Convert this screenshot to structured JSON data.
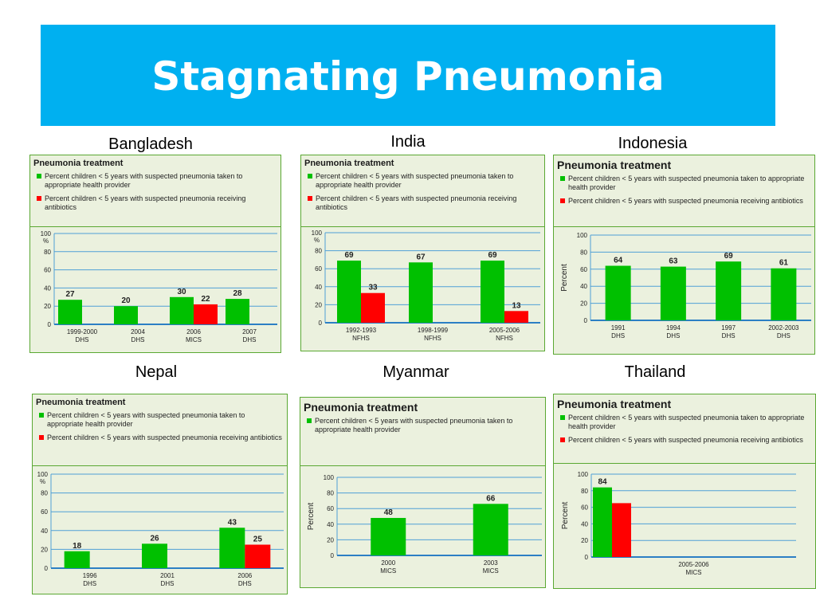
{
  "title": "Stagnating Pneumonia",
  "colors": {
    "banner": "#00b0f0",
    "provider": "#00c000",
    "antibiotics": "#ff0000",
    "panel_bg": "#ebf1de",
    "border": "#5aa832",
    "grid": "#4f9fd6"
  },
  "legend_labels": {
    "provider": "Percent children < 5 years with suspected pneumonia taken to appropriate health provider",
    "antibiotics": "Percent children < 5 years with suspected pneumonia receiving antibiotics"
  },
  "chart_data": [
    {
      "country": "Bangladesh",
      "type": "bar",
      "title": "Pneumonia treatment",
      "ylabel": "",
      "yunit": "%",
      "ylim": [
        0,
        100
      ],
      "yticks": [
        0,
        20,
        40,
        60,
        80,
        100
      ],
      "categories": [
        "1999-2000|DHS",
        "2004|DHS",
        "2006|MICS",
        "2007|DHS"
      ],
      "series": [
        {
          "name": "Percent children < 5 years with suspected pneumonia taken to appropriate health provider",
          "key": "provider",
          "values": [
            27,
            20,
            30,
            28
          ]
        },
        {
          "name": "Percent children < 5 years with suspected pneumonia receiving antibiotics",
          "key": "antibiotics",
          "values": [
            null,
            null,
            22,
            null
          ]
        }
      ]
    },
    {
      "country": "India",
      "type": "bar",
      "title": "Pneumonia treatment",
      "ylabel": "",
      "yunit": "%",
      "ylim": [
        0,
        100
      ],
      "yticks": [
        0,
        20,
        40,
        60,
        80,
        100
      ],
      "categories": [
        "1992-1993|NFHS",
        "1998-1999|NFHS",
        "2005-2006|NFHS"
      ],
      "series": [
        {
          "name": "Percent children < 5 years with suspected pneumonia taken to appropriate health provider",
          "key": "provider",
          "values": [
            69,
            67,
            69
          ]
        },
        {
          "name": "Percent children < 5 years with suspected pneumonia receiving antibiotics",
          "key": "antibiotics",
          "values": [
            33,
            null,
            13
          ]
        }
      ]
    },
    {
      "country": "Indonesia",
      "type": "bar",
      "title": "Pneumonia treatment",
      "ylabel": "Percent",
      "yunit": "",
      "ylim": [
        0,
        100
      ],
      "yticks": [
        0,
        20,
        40,
        60,
        80,
        100
      ],
      "categories": [
        "1991|DHS",
        "1994|DHS",
        "1997|DHS",
        "2002-2003|DHS"
      ],
      "series": [
        {
          "name": "Percent children < 5 years with suspected pneumonia taken to appropriate health provider",
          "key": "provider",
          "values": [
            64,
            63,
            69,
            61
          ]
        },
        {
          "name": "Percent children < 5 years with suspected pneumonia receiving antibiotics",
          "key": "antibiotics",
          "values": [
            null,
            null,
            null,
            null
          ]
        }
      ]
    },
    {
      "country": "Nepal",
      "type": "bar",
      "title": "Pneumonia treatment",
      "ylabel": "",
      "yunit": "%",
      "ylim": [
        0,
        100
      ],
      "yticks": [
        0,
        20,
        40,
        60,
        80,
        100
      ],
      "categories": [
        "1996|DHS",
        "2001|DHS",
        "2006|DHS"
      ],
      "series": [
        {
          "name": "Percent children < 5 years with suspected pneumonia taken to appropriate health provider",
          "key": "provider",
          "values": [
            18,
            26,
            43
          ]
        },
        {
          "name": "Percent children < 5 years with suspected pneumonia receiving antibiotics",
          "key": "antibiotics",
          "values": [
            null,
            null,
            25
          ]
        }
      ]
    },
    {
      "country": "Myanmar",
      "type": "bar",
      "title": "Pneumonia treatment",
      "ylabel": "Percent",
      "yunit": "",
      "ylim": [
        0,
        100
      ],
      "yticks": [
        0,
        20,
        40,
        60,
        80,
        100
      ],
      "categories": [
        "2000|MICS",
        "2003|MICS"
      ],
      "series": [
        {
          "name": "Percent children < 5 years with suspected pneumonia taken to appropriate health provider",
          "key": "provider",
          "values": [
            48,
            66
          ]
        }
      ]
    },
    {
      "country": "Thailand",
      "type": "bar",
      "title": "Pneumonia treatment",
      "ylabel": "Percent",
      "yunit": "",
      "ylim": [
        0,
        100
      ],
      "yticks": [
        0,
        20,
        40,
        60,
        80,
        100
      ],
      "categories": [
        "2005-2006|MICS"
      ],
      "series": [
        {
          "name": "Percent children < 5 years with suspected pneumonia taken to appropriate health provider",
          "key": "provider",
          "values": [
            84
          ]
        },
        {
          "name": "Percent children < 5 years with suspected pneumonia receiving antibiotics",
          "key": "antibiotics",
          "values": [
            65
          ]
        }
      ],
      "labeled": [
        "provider"
      ]
    }
  ]
}
